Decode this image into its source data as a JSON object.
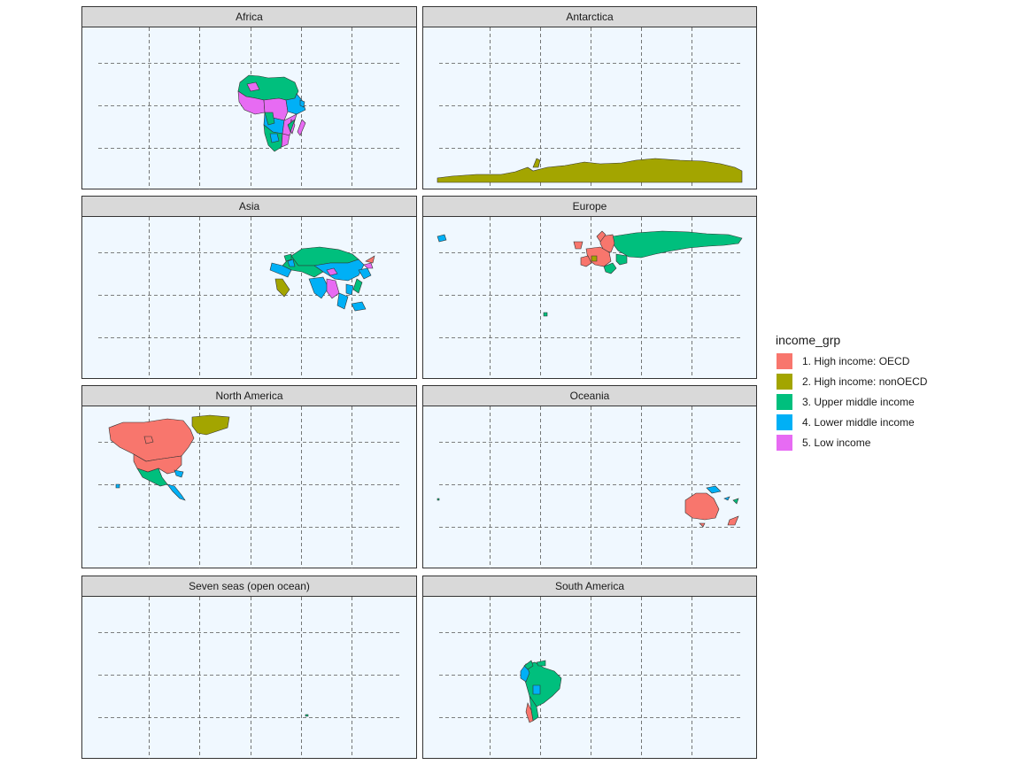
{
  "map": {
    "colors": {
      "oecd": "#f8766d",
      "nonoecd": "#a3a500",
      "upper": "#00bf7d",
      "lower": "#00b0f6",
      "low": "#e76bf3",
      "water": "#f0f8ff",
      "grid": "#555555"
    },
    "panels": [
      {
        "id": "africa",
        "title": "Africa"
      },
      {
        "id": "antarctica",
        "title": "Antarctica"
      },
      {
        "id": "asia",
        "title": "Asia"
      },
      {
        "id": "europe",
        "title": "Europe"
      },
      {
        "id": "north-america",
        "title": "North America"
      },
      {
        "id": "oceania",
        "title": "Oceania"
      },
      {
        "id": "seven-seas",
        "title": "Seven seas (open ocean)"
      },
      {
        "id": "south-america",
        "title": "South America"
      }
    ],
    "legend": {
      "title": "income_grp",
      "items": [
        {
          "label": "1. High income: OECD",
          "color": "#f8766d"
        },
        {
          "label": "2. High income: nonOECD",
          "color": "#a3a500"
        },
        {
          "label": "3. Upper middle income",
          "color": "#00bf7d"
        },
        {
          "label": "4. Lower middle income",
          "color": "#00b0f6"
        },
        {
          "label": "5. Low income",
          "color": "#e76bf3"
        }
      ]
    }
  }
}
